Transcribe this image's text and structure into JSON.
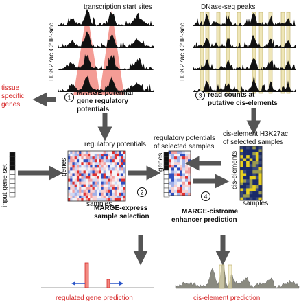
{
  "labels": {
    "tss_title": "transcription start sites",
    "dnase_title": "DNase-seq peaks",
    "chipseq_left": "H3K27ac ChIP-seq",
    "chipseq_right": "H3K27ac ChIP-seq",
    "tissue_line1": "tissue",
    "tissue_line2": "specific",
    "tissue_line3": "genes",
    "step1_num": "1",
    "step1_line1": "MARGE-potential",
    "step1_line2": "gene regulatory",
    "step1_line3": "potentials",
    "step3_num": "3",
    "step3_line1": "read counts at",
    "step3_line2": "putative cis-elements",
    "regpot_title": "regulatory potentials",
    "regpot_sel_line1": "regulatory potentials",
    "regpot_sel_line2": "of selected samples",
    "cis_title_line1": "cis-element H3K27ac",
    "cis_title_line2": "of selected samples",
    "input_gene_set": "input gene set",
    "genes_left": "genes",
    "genes_mid": "genes",
    "samples_left": "samples",
    "samples_right": "samples",
    "cis_elements": "cis-elements",
    "step2_num": "2",
    "step2_line1": "MARGE-express",
    "step2_line2": "sample selection",
    "step4_num": "4",
    "step4_line1": "MARGE-cistrome",
    "step4_line2": "enhancer prediction",
    "regulated_gene_prediction": "regulated gene prediction",
    "cis_element_prediction": "cis-element prediction"
  },
  "colors": {
    "tss_highlight": "#f28b82",
    "dnase_box": "#e8e0b0",
    "highlight_red": "#d62728",
    "arrow_gray": "#555555",
    "heat_red": "#e03030",
    "heat_blue": "#3050c0",
    "cis_yellow": "#e8d020",
    "cis_navy": "#1a2a6a"
  }
}
